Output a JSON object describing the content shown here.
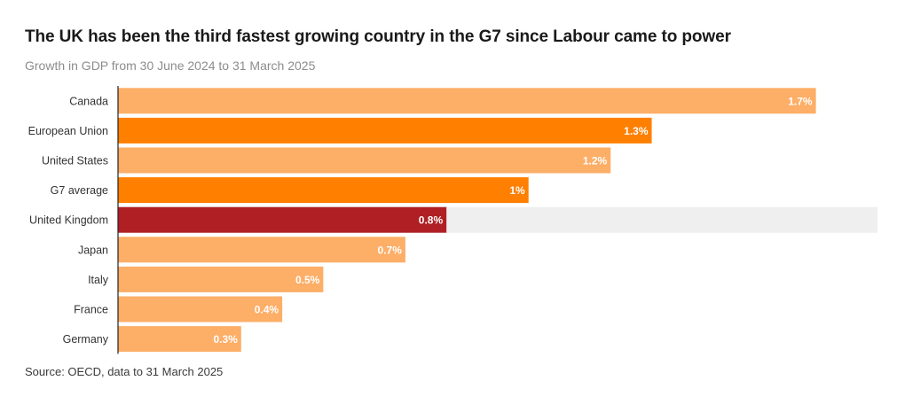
{
  "chart_data": {
    "type": "bar",
    "orientation": "horizontal",
    "title": "The UK has been the third fastest growing country in the G7 since Labour came to power",
    "subtitle": "Growth in GDP from 30 June 2024 to 31 March 2025",
    "source": "Source: OECD, data to 31 March 2025",
    "categories": [
      "Canada",
      "European Union",
      "United States",
      "G7 average",
      "United Kingdom",
      "Japan",
      "Italy",
      "France",
      "Germany"
    ],
    "values": [
      1.7,
      1.3,
      1.2,
      1.0,
      0.8,
      0.7,
      0.5,
      0.4,
      0.3
    ],
    "value_labels": [
      "1.7%",
      "1.3%",
      "1.2%",
      "1%",
      "0.8%",
      "0.7%",
      "0.5%",
      "0.4%",
      "0.3%"
    ],
    "highlight": [
      "light",
      "medium",
      "light",
      "medium",
      "dark",
      "light",
      "light",
      "light",
      "light"
    ],
    "xlim": [
      0,
      1.85
    ],
    "xlabel": "",
    "ylabel": "",
    "colors": {
      "light": "#fdae67",
      "medium": "#ff7f00",
      "dark": "#b01f24",
      "highlight_row_bg": "#efefef",
      "axis": "#222222"
    }
  }
}
